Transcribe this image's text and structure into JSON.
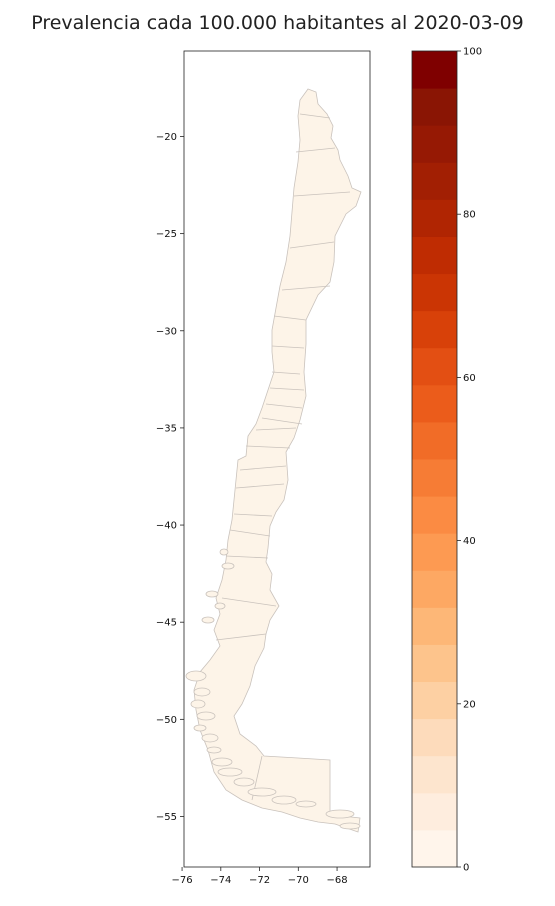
{
  "title": "Prevalencia cada 100.000 habitantes al 2020-03-09",
  "map": {
    "region_fill": "#fdf4e8",
    "region_stroke": "#c9c2bc",
    "lon_ticks": [
      -76,
      -74,
      -72,
      -70,
      -68
    ],
    "lat_ticks": [
      -20,
      -25,
      -30,
      -35,
      -40,
      -45,
      -50,
      -55
    ],
    "lon_labels": [
      "−76",
      "−74",
      "−72",
      "−70",
      "−68"
    ],
    "lat_labels": [
      "−20",
      "−25",
      "−30",
      "−35",
      "−40",
      "−45",
      "−50",
      "−55"
    ],
    "xlim": [
      -75.9,
      -66.3
    ],
    "ylim": [
      -57.6,
      -15.6
    ]
  },
  "colorbar": {
    "min": 0,
    "max": 100,
    "tick_values": [
      0,
      20,
      40,
      60,
      80,
      100
    ],
    "tick_labels": [
      "0",
      "20",
      "40",
      "60",
      "80",
      "100"
    ],
    "colors": [
      "#fff5eb",
      "#feedde",
      "#fde5ce",
      "#fddbbb",
      "#fdd0a3",
      "#fdc48c",
      "#fdb777",
      "#fda863",
      "#fd9a52",
      "#fb8b43",
      "#f67c35",
      "#f16c27",
      "#eb5c1b",
      "#e34f13",
      "#d84109",
      "#cb3504",
      "#bf2c02",
      "#b02502",
      "#a21f03",
      "#961904",
      "#8a1504",
      "#7f0000"
    ]
  }
}
